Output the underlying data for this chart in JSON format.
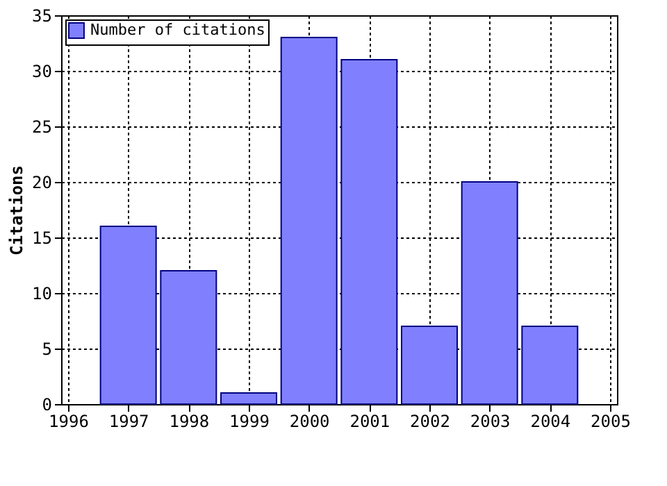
{
  "chart_data": {
    "type": "bar",
    "ylabel": "Citations",
    "x": [
      1997,
      1998,
      1999,
      2000,
      2001,
      2002,
      2003,
      2004
    ],
    "series": [
      {
        "name": "Number of citations",
        "color": "#8080ff",
        "values": [
          16,
          12,
          1,
          33,
          31,
          7,
          20,
          7
        ]
      }
    ],
    "xlim": [
      1996,
      2005
    ],
    "xticks": [
      1996,
      1997,
      1998,
      1999,
      2000,
      2001,
      2002,
      2003,
      2004,
      2005
    ],
    "ylim": [
      0,
      35
    ],
    "yticks": [
      0,
      5,
      10,
      15,
      20,
      25,
      30,
      35
    ],
    "grid": true,
    "legend": "top left"
  }
}
